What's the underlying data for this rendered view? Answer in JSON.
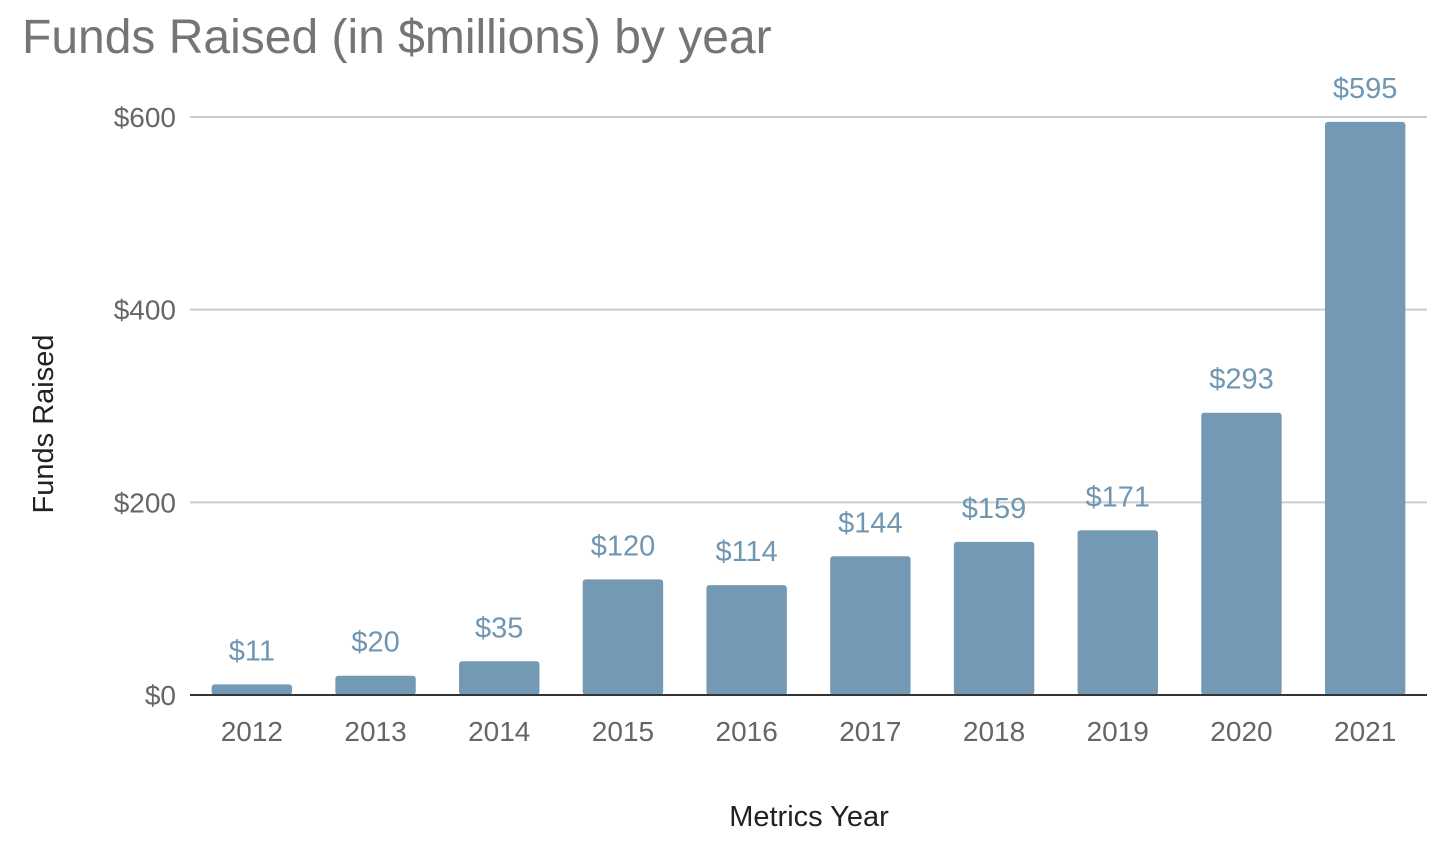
{
  "chart_data": {
    "type": "bar",
    "title": "Funds Raised (in $millions) by year",
    "xlabel": "Metrics Year",
    "ylabel": "Funds Raised",
    "categories": [
      "2012",
      "2013",
      "2014",
      "2015",
      "2016",
      "2017",
      "2018",
      "2019",
      "2020",
      "2021"
    ],
    "values": [
      11,
      20,
      35,
      120,
      114,
      144,
      159,
      171,
      293,
      595
    ],
    "data_labels": [
      "$11",
      "$20",
      "$35",
      "$120",
      "$114",
      "$144",
      "$159",
      "$171",
      "$293",
      "$595"
    ],
    "ylim": [
      0,
      600
    ],
    "y_ticks": [
      0,
      200,
      400,
      600
    ],
    "y_tick_labels": [
      "$0",
      "$200",
      "$400",
      "$600"
    ],
    "grid": true,
    "legend": "none",
    "colors": {
      "bar": "#7399b4",
      "data_label": "#6f97b3"
    }
  }
}
